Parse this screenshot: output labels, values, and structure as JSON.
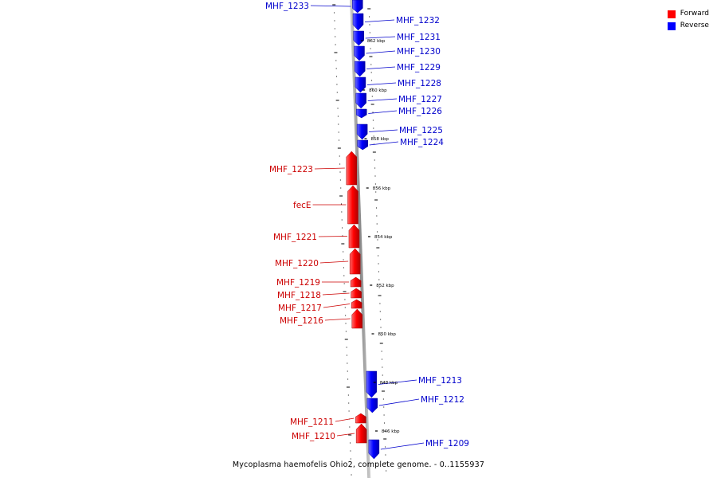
{
  "caption": "Mycoplasma haemofelis Ohio2, complete genome. - 0..1155937",
  "legend": [
    {
      "label": "Forward",
      "color": "#ff0000"
    },
    {
      "label": "Reverse",
      "color": "#0000ff"
    }
  ],
  "tick_labels": [
    "862 kbp",
    "860 kbp",
    "858 kbp",
    "856 kbp",
    "854 kbp",
    "852 kbp",
    "850 kbp",
    "848 kbp",
    "846 kbp"
  ],
  "genes": [
    {
      "name": "MHF_1233",
      "strand": "reverse"
    },
    {
      "name": "MHF_1232",
      "strand": "reverse"
    },
    {
      "name": "MHF_1231",
      "strand": "reverse"
    },
    {
      "name": "MHF_1230",
      "strand": "reverse"
    },
    {
      "name": "MHF_1229",
      "strand": "reverse"
    },
    {
      "name": "MHF_1228",
      "strand": "reverse"
    },
    {
      "name": "MHF_1227",
      "strand": "reverse"
    },
    {
      "name": "MHF_1226",
      "strand": "reverse"
    },
    {
      "name": "MHF_1225",
      "strand": "reverse"
    },
    {
      "name": "MHF_1224",
      "strand": "reverse"
    },
    {
      "name": "MHF_1223",
      "strand": "forward"
    },
    {
      "name": "fecE",
      "strand": "forward"
    },
    {
      "name": "MHF_1221",
      "strand": "forward"
    },
    {
      "name": "MHF_1220",
      "strand": "forward"
    },
    {
      "name": "MHF_1219",
      "strand": "forward"
    },
    {
      "name": "MHF_1218",
      "strand": "forward"
    },
    {
      "name": "MHF_1217",
      "strand": "forward"
    },
    {
      "name": "MHF_1216",
      "strand": "forward"
    },
    {
      "name": "MHF_1213",
      "strand": "reverse"
    },
    {
      "name": "MHF_1212",
      "strand": "reverse"
    },
    {
      "name": "MHF_1211",
      "strand": "forward"
    },
    {
      "name": "MHF_1210",
      "strand": "forward"
    },
    {
      "name": "MHF_1209",
      "strand": "reverse"
    }
  ]
}
